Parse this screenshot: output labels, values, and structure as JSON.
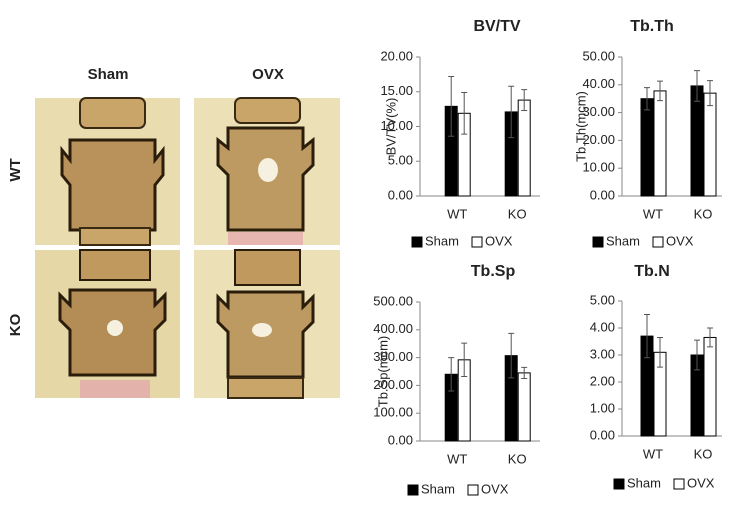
{
  "images": {
    "columns": [
      "Sham",
      "OVX"
    ],
    "rows": [
      "WT",
      "KO"
    ]
  },
  "chart_data": [
    {
      "type": "bar",
      "title": "BV/TV",
      "ylabel": "BV/TV(%)",
      "categories": [
        "WT",
        "KO"
      ],
      "series": [
        {
          "name": "Sham",
          "color": "#000000",
          "values": [
            12.9,
            12.1
          ],
          "errors": [
            4.3,
            3.7
          ]
        },
        {
          "name": "OVX",
          "color": "#ffffff",
          "values": [
            11.9,
            13.8
          ],
          "errors": [
            3.0,
            1.5
          ]
        }
      ],
      "ylim": [
        0,
        20
      ],
      "yticks": [
        {
          "value": 0,
          "label": "0.00"
        },
        {
          "value": 5,
          "label": "5.00"
        },
        {
          "value": 10,
          "label": "10.00"
        },
        {
          "value": 15,
          "label": "15.00"
        },
        {
          "value": 20,
          "label": "20.00"
        }
      ]
    },
    {
      "type": "bar",
      "title": "Tb.Th",
      "ylabel": "Tb.Th(mcm)",
      "categories": [
        "WT",
        "KO"
      ],
      "series": [
        {
          "name": "Sham",
          "color": "#000000",
          "values": [
            35.0,
            39.6
          ],
          "errors": [
            4.0,
            5.5
          ]
        },
        {
          "name": "OVX",
          "color": "#ffffff",
          "values": [
            37.8,
            37.0
          ],
          "errors": [
            3.5,
            4.5
          ]
        }
      ],
      "ylim": [
        0,
        50
      ],
      "yticks": [
        {
          "value": 0,
          "label": "0.00"
        },
        {
          "value": 10,
          "label": "10.00"
        },
        {
          "value": 20,
          "label": "20.00"
        },
        {
          "value": 30,
          "label": "30.00"
        },
        {
          "value": 40,
          "label": "40.00"
        },
        {
          "value": 50,
          "label": "50.00"
        }
      ]
    },
    {
      "type": "bar",
      "title": "Tb.Sp",
      "ylabel": "Tb.Sp(mcm)",
      "categories": [
        "WT",
        "KO"
      ],
      "series": [
        {
          "name": "Sham",
          "color": "#000000",
          "values": [
            240,
            307
          ],
          "errors": [
            60,
            80
          ]
        },
        {
          "name": "OVX",
          "color": "#ffffff",
          "values": [
            292,
            245
          ],
          "errors": [
            60,
            20
          ]
        }
      ],
      "ylim": [
        0,
        500
      ],
      "yticks": [
        {
          "value": 0,
          "label": "0.00"
        },
        {
          "value": 100,
          "label": "100.00"
        },
        {
          "value": 200,
          "label": "200.00"
        },
        {
          "value": 300,
          "label": "300.00"
        },
        {
          "value": 400,
          "label": "400.00"
        },
        {
          "value": 500,
          "label": "500.00"
        }
      ]
    },
    {
      "type": "bar",
      "title": "Tb.N",
      "categories": [
        "WT",
        "KO"
      ],
      "series": [
        {
          "name": "Sham",
          "color": "#000000",
          "values": [
            3.7,
            3.0
          ],
          "errors": [
            0.8,
            0.55
          ]
        },
        {
          "name": "OVX",
          "color": "#ffffff",
          "values": [
            3.1,
            3.65
          ],
          "errors": [
            0.55,
            0.35
          ]
        }
      ],
      "ylim": [
        0,
        5
      ],
      "yticks": [
        {
          "value": 0,
          "label": "0.00"
        },
        {
          "value": 1,
          "label": "1.00"
        },
        {
          "value": 2,
          "label": "2.00"
        },
        {
          "value": 3,
          "label": "3.00"
        },
        {
          "value": 4,
          "label": "4.00"
        },
        {
          "value": 5,
          "label": "5.00"
        }
      ]
    }
  ]
}
